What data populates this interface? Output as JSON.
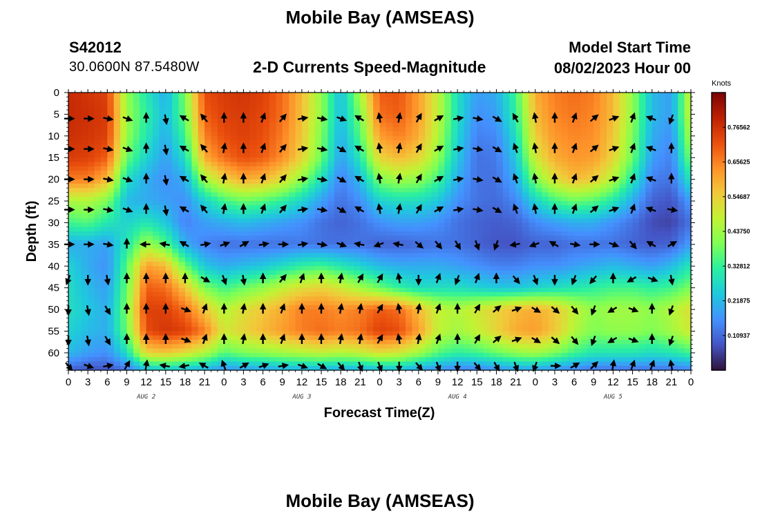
{
  "header": {
    "title": "Mobile Bay (AMSEAS)",
    "station_id": "S42012",
    "coords": "30.0600N  87.5480W",
    "subtitle": "2-D Currents Speed-Magnitude",
    "model_label": "Model Start Time",
    "model_time": "08/02/2023 Hour 00",
    "bottom_title": "Mobile Bay (AMSEAS)"
  },
  "chart_data": {
    "type": "heatmap",
    "title": "2-D Currents Speed-Magnitude",
    "xlabel": "Forecast Time(Z)",
    "ylabel": "Depth (ft)",
    "x_tick_labels": [
      "0",
      "3",
      "6",
      "9",
      "12",
      "15",
      "18",
      "21",
      "0",
      "3",
      "6",
      "9",
      "12",
      "15",
      "18",
      "21",
      "0",
      "3",
      "6",
      "9",
      "12",
      "15",
      "18",
      "21",
      "0",
      "3",
      "6",
      "9",
      "12",
      "15",
      "18",
      "21",
      "0"
    ],
    "x_hours_range": [
      0,
      96
    ],
    "day_labels": [
      "AUG 2",
      "AUG 3",
      "AUG 4",
      "AUG 5"
    ],
    "y_ticks": [
      0,
      5,
      10,
      15,
      20,
      25,
      30,
      35,
      40,
      45,
      50,
      55,
      60
    ],
    "ylim": [
      0,
      64
    ],
    "y_inverted": true,
    "colorbar": {
      "unit": "Knots",
      "labels": [
        "0.76562",
        "0.65625",
        "0.54687",
        "0.43750",
        "0.32812",
        "0.21875",
        "0.10937"
      ],
      "range": [
        0,
        0.875
      ],
      "colors": [
        "#30123b",
        "#4454c4",
        "#4490fe",
        "#1fc8de",
        "#29efa2",
        "#7dff56",
        "#c1f334",
        "#f1ca3a",
        "#fe922a",
        "#ea4f0d",
        "#be2102",
        "#7a0403"
      ]
    },
    "speed_grid": {
      "x_hours": [
        0,
        3,
        6,
        9,
        12,
        15,
        18,
        21,
        24,
        27,
        30,
        33,
        36,
        39,
        42,
        45,
        48,
        51,
        54,
        57,
        60,
        63,
        66,
        69,
        72,
        75,
        78,
        81,
        84,
        87,
        90,
        93,
        96
      ],
      "depths": [
        0,
        5,
        10,
        15,
        20,
        25,
        30,
        35,
        40,
        45,
        50,
        55,
        60,
        64
      ],
      "values": [
        [
          0.78,
          0.76,
          0.74,
          0.42,
          0.3,
          0.2,
          0.4,
          0.72,
          0.75,
          0.76,
          0.74,
          0.68,
          0.58,
          0.42,
          0.22,
          0.45,
          0.7,
          0.71,
          0.62,
          0.48,
          0.28,
          0.18,
          0.2,
          0.34,
          0.6,
          0.66,
          0.68,
          0.66,
          0.58,
          0.42,
          0.22,
          0.18,
          0.5
        ],
        [
          0.78,
          0.77,
          0.75,
          0.43,
          0.32,
          0.22,
          0.38,
          0.7,
          0.74,
          0.75,
          0.73,
          0.68,
          0.57,
          0.42,
          0.22,
          0.4,
          0.68,
          0.7,
          0.62,
          0.48,
          0.28,
          0.16,
          0.18,
          0.32,
          0.58,
          0.65,
          0.67,
          0.65,
          0.58,
          0.42,
          0.22,
          0.18,
          0.5
        ],
        [
          0.77,
          0.76,
          0.74,
          0.42,
          0.3,
          0.2,
          0.34,
          0.66,
          0.72,
          0.74,
          0.72,
          0.66,
          0.56,
          0.4,
          0.2,
          0.36,
          0.62,
          0.66,
          0.6,
          0.46,
          0.26,
          0.14,
          0.15,
          0.28,
          0.55,
          0.63,
          0.65,
          0.64,
          0.56,
          0.4,
          0.2,
          0.16,
          0.46
        ],
        [
          0.75,
          0.74,
          0.7,
          0.38,
          0.26,
          0.18,
          0.28,
          0.6,
          0.68,
          0.72,
          0.7,
          0.64,
          0.54,
          0.38,
          0.18,
          0.3,
          0.54,
          0.58,
          0.54,
          0.42,
          0.24,
          0.12,
          0.13,
          0.24,
          0.5,
          0.6,
          0.63,
          0.62,
          0.54,
          0.38,
          0.18,
          0.14,
          0.4
        ],
        [
          0.66,
          0.66,
          0.58,
          0.28,
          0.2,
          0.16,
          0.2,
          0.44,
          0.54,
          0.6,
          0.58,
          0.52,
          0.42,
          0.28,
          0.14,
          0.22,
          0.4,
          0.44,
          0.42,
          0.34,
          0.2,
          0.12,
          0.12,
          0.2,
          0.4,
          0.52,
          0.58,
          0.55,
          0.46,
          0.3,
          0.14,
          0.12,
          0.3
        ],
        [
          0.45,
          0.46,
          0.4,
          0.22,
          0.2,
          0.18,
          0.16,
          0.26,
          0.34,
          0.38,
          0.36,
          0.32,
          0.26,
          0.18,
          0.12,
          0.16,
          0.26,
          0.28,
          0.28,
          0.24,
          0.16,
          0.12,
          0.11,
          0.15,
          0.26,
          0.34,
          0.38,
          0.36,
          0.3,
          0.2,
          0.1,
          0.08,
          0.18
        ],
        [
          0.34,
          0.36,
          0.3,
          0.26,
          0.3,
          0.24,
          0.14,
          0.18,
          0.2,
          0.22,
          0.2,
          0.18,
          0.16,
          0.12,
          0.1,
          0.12,
          0.16,
          0.18,
          0.18,
          0.16,
          0.12,
          0.1,
          0.09,
          0.1,
          0.15,
          0.18,
          0.2,
          0.2,
          0.16,
          0.12,
          0.07,
          0.06,
          0.12
        ],
        [
          0.2,
          0.2,
          0.18,
          0.3,
          0.44,
          0.36,
          0.2,
          0.14,
          0.12,
          0.12,
          0.12,
          0.12,
          0.13,
          0.12,
          0.12,
          0.12,
          0.1,
          0.1,
          0.11,
          0.12,
          0.12,
          0.1,
          0.08,
          0.08,
          0.1,
          0.1,
          0.12,
          0.12,
          0.12,
          0.1,
          0.09,
          0.1,
          0.18
        ],
        [
          0.26,
          0.2,
          0.16,
          0.36,
          0.62,
          0.58,
          0.38,
          0.24,
          0.2,
          0.22,
          0.24,
          0.28,
          0.32,
          0.34,
          0.3,
          0.26,
          0.22,
          0.2,
          0.2,
          0.2,
          0.18,
          0.16,
          0.14,
          0.14,
          0.16,
          0.16,
          0.18,
          0.2,
          0.22,
          0.2,
          0.18,
          0.22,
          0.3
        ],
        [
          0.28,
          0.22,
          0.18,
          0.38,
          0.7,
          0.68,
          0.56,
          0.4,
          0.34,
          0.38,
          0.42,
          0.48,
          0.52,
          0.54,
          0.5,
          0.44,
          0.38,
          0.32,
          0.28,
          0.28,
          0.28,
          0.26,
          0.24,
          0.24,
          0.26,
          0.28,
          0.3,
          0.32,
          0.34,
          0.34,
          0.32,
          0.34,
          0.4
        ],
        [
          0.28,
          0.24,
          0.2,
          0.4,
          0.74,
          0.74,
          0.68,
          0.56,
          0.46,
          0.52,
          0.56,
          0.6,
          0.66,
          0.66,
          0.64,
          0.66,
          0.7,
          0.68,
          0.58,
          0.48,
          0.46,
          0.5,
          0.54,
          0.58,
          0.6,
          0.56,
          0.48,
          0.42,
          0.44,
          0.44,
          0.42,
          0.46,
          0.52
        ],
        [
          0.26,
          0.22,
          0.2,
          0.38,
          0.72,
          0.76,
          0.74,
          0.66,
          0.5,
          0.54,
          0.58,
          0.62,
          0.66,
          0.68,
          0.66,
          0.68,
          0.74,
          0.72,
          0.62,
          0.48,
          0.44,
          0.48,
          0.54,
          0.6,
          0.62,
          0.56,
          0.46,
          0.4,
          0.42,
          0.42,
          0.4,
          0.44,
          0.5
        ],
        [
          0.22,
          0.18,
          0.16,
          0.28,
          0.54,
          0.56,
          0.52,
          0.46,
          0.36,
          0.4,
          0.42,
          0.44,
          0.46,
          0.48,
          0.46,
          0.48,
          0.52,
          0.5,
          0.44,
          0.36,
          0.32,
          0.34,
          0.38,
          0.42,
          0.44,
          0.4,
          0.34,
          0.3,
          0.3,
          0.3,
          0.28,
          0.3,
          0.34
        ],
        [
          0.1,
          0.08,
          0.08,
          0.12,
          0.22,
          0.24,
          0.22,
          0.2,
          0.16,
          0.18,
          0.18,
          0.2,
          0.2,
          0.2,
          0.2,
          0.2,
          0.22,
          0.22,
          0.18,
          0.16,
          0.14,
          0.14,
          0.16,
          0.18,
          0.18,
          0.16,
          0.14,
          0.12,
          0.12,
          0.12,
          0.12,
          0.12,
          0.14
        ]
      ]
    },
    "arrow_grid": {
      "x_hours": [
        0,
        3,
        6,
        9,
        12,
        15,
        18,
        21,
        24,
        27,
        30,
        33,
        36,
        39,
        42,
        45,
        48,
        51,
        54,
        57,
        60,
        63,
        66,
        69,
        72,
        75,
        78,
        81,
        84,
        87,
        90,
        93
      ],
      "depths": [
        6,
        13,
        20,
        27,
        35,
        43,
        50,
        57,
        63
      ],
      "directions_deg": [
        [
          90,
          90,
          100,
          110,
          0,
          170,
          300,
          320,
          0,
          0,
          20,
          40,
          80,
          100,
          110,
          300,
          350,
          10,
          30,
          60,
          80,
          100,
          120,
          330,
          350,
          0,
          20,
          50,
          70,
          20,
          290,
          200
        ],
        [
          90,
          90,
          100,
          110,
          0,
          170,
          300,
          320,
          10,
          0,
          20,
          40,
          80,
          100,
          120,
          300,
          350,
          10,
          30,
          60,
          80,
          100,
          120,
          340,
          350,
          0,
          20,
          50,
          70,
          20,
          290,
          0
        ],
        [
          90,
          90,
          100,
          110,
          0,
          170,
          300,
          320,
          10,
          0,
          20,
          40,
          80,
          100,
          120,
          300,
          350,
          10,
          30,
          60,
          80,
          100,
          120,
          340,
          350,
          0,
          20,
          50,
          70,
          20,
          290,
          0
        ],
        [
          90,
          90,
          100,
          110,
          0,
          170,
          300,
          320,
          10,
          0,
          20,
          40,
          80,
          100,
          120,
          300,
          350,
          10,
          30,
          60,
          80,
          100,
          120,
          340,
          350,
          0,
          20,
          50,
          70,
          20,
          290,
          100
        ],
        [
          90,
          90,
          100,
          0,
          270,
          280,
          300,
          80,
          70,
          60,
          80,
          90,
          80,
          100,
          110,
          280,
          250,
          280,
          130,
          140,
          150,
          160,
          200,
          260,
          250,
          300,
          100,
          90,
          110,
          140,
          300,
          60
        ],
        [
          200,
          180,
          170,
          0,
          0,
          0,
          0,
          120,
          160,
          170,
          0,
          40,
          20,
          0,
          10,
          30,
          30,
          350,
          180,
          20,
          200,
          20,
          0,
          140,
          160,
          180,
          200,
          220,
          0,
          240,
          110,
          170
        ],
        [
          180,
          170,
          150,
          0,
          0,
          0,
          110,
          20,
          0,
          10,
          0,
          20,
          0,
          0,
          10,
          10,
          30,
          350,
          10,
          20,
          0,
          30,
          50,
          70,
          120,
          130,
          140,
          200,
          240,
          110,
          0,
          200
        ],
        [
          180,
          170,
          150,
          0,
          0,
          0,
          110,
          20,
          0,
          10,
          0,
          20,
          0,
          0,
          10,
          10,
          30,
          350,
          10,
          20,
          0,
          30,
          50,
          70,
          120,
          130,
          140,
          200,
          240,
          110,
          0,
          200
        ],
        [
          140,
          110,
          80,
          30,
          10,
          280,
          260,
          300,
          340,
          60,
          70,
          80,
          110,
          120,
          140,
          160,
          160,
          180,
          140,
          160,
          180,
          140,
          150,
          160,
          200,
          90,
          60,
          45,
          10,
          20,
          20,
          350
        ]
      ]
    }
  }
}
